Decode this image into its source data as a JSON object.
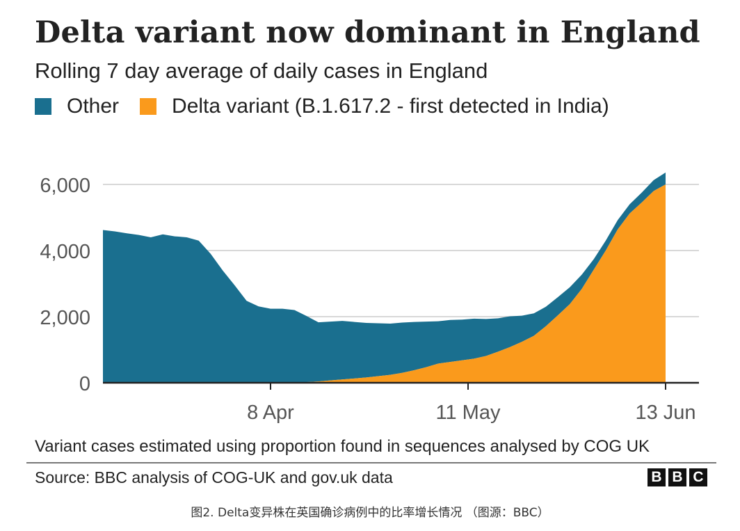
{
  "header": {
    "title": "Delta variant now dominant in England",
    "subtitle": "Rolling 7 day average of daily cases in England"
  },
  "legend": {
    "items": [
      {
        "label": "Other",
        "color": "#1a6f8f"
      },
      {
        "label": "Delta variant (B.1.617.2 - first detected in India)",
        "color": "#fa9a1c"
      }
    ]
  },
  "chart_data": {
    "type": "area",
    "stacked": true,
    "x_axis": {
      "type": "date",
      "tick_labels": [
        "8 Apr",
        "11 May",
        "13 Jun"
      ],
      "tick_dates": [
        "2021-04-08",
        "2021-05-11",
        "2021-06-13"
      ],
      "range": [
        "2021-03-11",
        "2021-06-13"
      ]
    },
    "y_axis": {
      "ylim": [
        0,
        6000
      ],
      "ticks": [
        0,
        2000,
        4000,
        6000
      ],
      "tick_labels": [
        "0",
        "2,000",
        "4,000",
        "6,000"
      ],
      "grid": true
    },
    "x": [
      "2021-03-11",
      "2021-03-13",
      "2021-03-15",
      "2021-03-17",
      "2021-03-19",
      "2021-03-21",
      "2021-03-23",
      "2021-03-25",
      "2021-03-27",
      "2021-03-29",
      "2021-03-31",
      "2021-04-02",
      "2021-04-04",
      "2021-04-06",
      "2021-04-08",
      "2021-04-10",
      "2021-04-12",
      "2021-04-14",
      "2021-04-16",
      "2021-04-18",
      "2021-04-20",
      "2021-04-22",
      "2021-04-24",
      "2021-04-26",
      "2021-04-28",
      "2021-04-30",
      "2021-05-02",
      "2021-05-04",
      "2021-05-06",
      "2021-05-08",
      "2021-05-10",
      "2021-05-12",
      "2021-05-14",
      "2021-05-16",
      "2021-05-18",
      "2021-05-20",
      "2021-05-22",
      "2021-05-24",
      "2021-05-26",
      "2021-05-28",
      "2021-05-30",
      "2021-06-01",
      "2021-06-03",
      "2021-06-05",
      "2021-06-07",
      "2021-06-09",
      "2021-06-11",
      "2021-06-13"
    ],
    "series": [
      {
        "name": "Other",
        "color": "#1a6f8f",
        "values": [
          4620,
          4580,
          4520,
          4470,
          4400,
          4490,
          4430,
          4400,
          4300,
          3900,
          3400,
          2950,
          2480,
          2310,
          2240,
          2240,
          2200,
          2000,
          1790,
          1780,
          1770,
          1710,
          1650,
          1600,
          1550,
          1520,
          1460,
          1380,
          1280,
          1270,
          1230,
          1210,
          1120,
          1010,
          930,
          790,
          680,
          590,
          550,
          510,
          430,
          320,
          300,
          280,
          280,
          300,
          330,
          360
        ]
      },
      {
        "name": "Delta variant (B.1.617.2 - first detected in India)",
        "color": "#fa9a1c",
        "values": [
          0,
          0,
          0,
          0,
          0,
          0,
          0,
          0,
          0,
          0,
          0,
          0,
          0,
          0,
          0,
          0,
          0,
          20,
          40,
          70,
          100,
          130,
          160,
          200,
          240,
          300,
          380,
          470,
          580,
          630,
          680,
          730,
          810,
          940,
          1080,
          1240,
          1420,
          1710,
          2040,
          2380,
          2840,
          3420,
          4000,
          4640,
          5120,
          5450,
          5800,
          6000
        ]
      }
    ]
  },
  "footer": {
    "note": "Variant cases estimated using proportion found in sequences analysed by COG UK",
    "source": "Source: BBC analysis of COG-UK and gov.uk data",
    "logo_letters": [
      "B",
      "B",
      "C"
    ]
  },
  "caption": "图2. Delta变异株在英国确诊病例中的比率增长情况 （图源：BBC）"
}
